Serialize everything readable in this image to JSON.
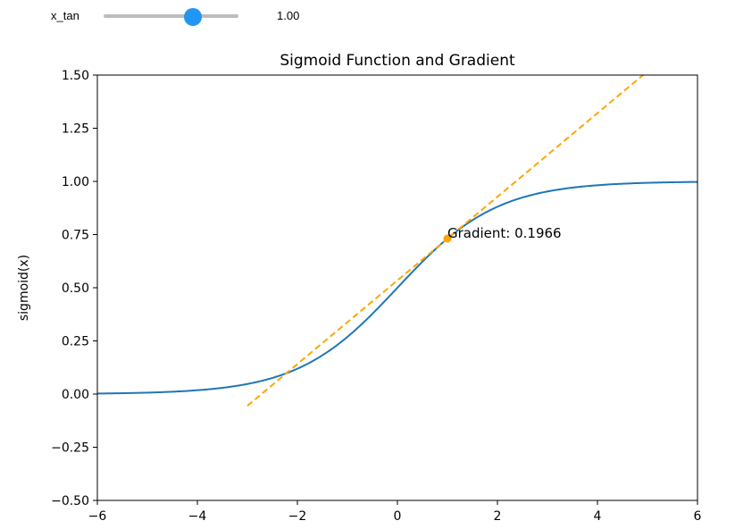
{
  "slider": {
    "label": "x_tan",
    "value": 1.0,
    "value_text": "1.00",
    "min": -6,
    "max": 6
  },
  "chart_data": {
    "type": "line",
    "title": "Sigmoid Function and Gradient",
    "xlabel": "",
    "ylabel": "sigmoid(x)",
    "xlim": [
      -6,
      6
    ],
    "ylim": [
      -0.5,
      1.5
    ],
    "xticks": [
      -6,
      -4,
      -2,
      0,
      2,
      4,
      6
    ],
    "xtick_labels": [
      "−6",
      "−4",
      "−2",
      "0",
      "2",
      "4",
      "6"
    ],
    "yticks": [
      -0.5,
      -0.25,
      0.0,
      0.25,
      0.5,
      0.75,
      1.0,
      1.25,
      1.5
    ],
    "ytick_labels": [
      "−0.50",
      "−0.25",
      "0.00",
      "0.25",
      "0.50",
      "0.75",
      "1.00",
      "1.25",
      "1.50"
    ],
    "grid": false,
    "series": [
      {
        "function": "1/(1+exp(-x))",
        "x_range": [
          -6,
          6
        ],
        "color": "#1f77b4",
        "style": "solid"
      },
      {
        "kind": "tangent",
        "x_range": [
          -3,
          5
        ],
        "point": [
          1.0,
          0.7311
        ],
        "slope": 0.1966,
        "color": "#ffa500",
        "style": "dashed"
      }
    ],
    "marker": {
      "x": 1.0,
      "y": 0.7311,
      "color": "#ffa500"
    },
    "annotation": {
      "text": "Gradient: 0.1966",
      "x": 1.0,
      "y": 0.7311
    }
  }
}
